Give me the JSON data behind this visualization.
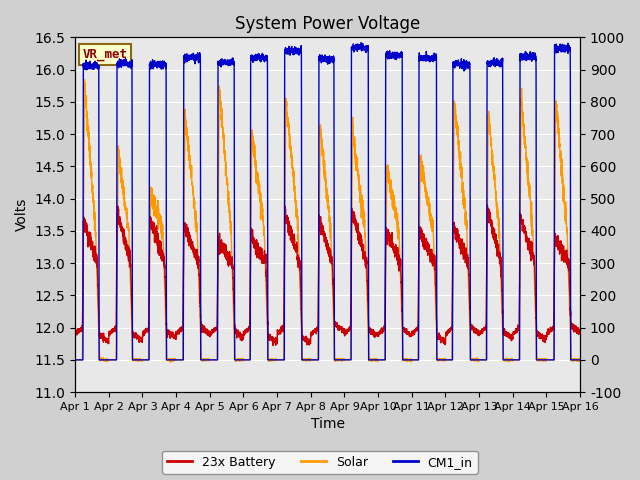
{
  "title": "System Power Voltage",
  "xlabel": "Time",
  "ylabel": "Volts",
  "ylim_left": [
    11.0,
    16.5
  ],
  "ylim_right": [
    -100,
    1000
  ],
  "yticks_left": [
    11.0,
    11.5,
    12.0,
    12.5,
    13.0,
    13.5,
    14.0,
    14.5,
    15.0,
    15.5,
    16.0,
    16.5
  ],
  "yticks_right": [
    -100,
    0,
    100,
    200,
    300,
    400,
    500,
    600,
    700,
    800,
    900,
    1000
  ],
  "xtick_labels": [
    "Apr 1",
    "Apr 2",
    "Apr 3",
    "Apr 4",
    "Apr 5",
    "Apr 6",
    "Apr 7",
    "Apr 8",
    "Apr 9",
    "Apr 10",
    "Apr 11",
    "Apr 12",
    "Apr 13",
    "Apr 14",
    "Apr 15",
    "Apr 16"
  ],
  "n_days": 15,
  "ppd": 288,
  "colors": {
    "battery": "#cc0000",
    "solar": "#ff9900",
    "cm1": "#0000cc"
  },
  "legend_labels": [
    "23x Battery",
    "Solar",
    "CM1_in"
  ],
  "annotation_text": "VR_met",
  "linewidth": 1.0,
  "fig_bg": "#d0d0d0",
  "plot_bg": "#e8e8e8"
}
